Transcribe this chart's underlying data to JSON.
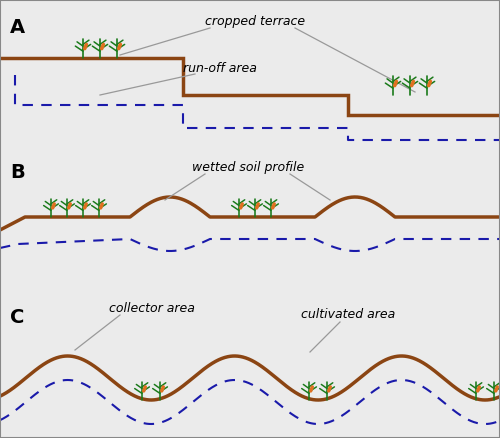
{
  "bg_color": "#ebebeb",
  "terrace_color": "#8B4513",
  "dashed_color": "#1a1aaa",
  "fig_width": 5.0,
  "fig_height": 4.38,
  "dpi": 100,
  "lw_terrace": 2.5,
  "lw_dashed": 1.5,
  "labels": {
    "A": "A",
    "B": "B",
    "C": "C",
    "cropped_terrace": "cropped terrace",
    "run_off_area": "run-off area",
    "wetted_soil_profile": "wetted soil profile",
    "cultivated_area": "cultivated area",
    "collector_area": "collector area"
  },
  "corn_green": "#1a7a1a",
  "corn_orange": "#e07020",
  "corn_leaf": "#2da82d"
}
